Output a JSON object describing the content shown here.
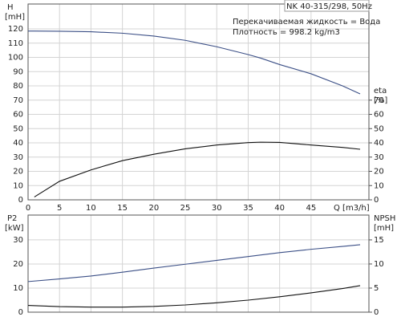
{
  "chart_data": [
    {
      "type": "line",
      "title": "NK 40-315/298, 50Hz",
      "annotations": [
        "Перекачиваемая жидкость = Вода",
        "Плотность = 998.2 kg/m3"
      ],
      "y_label": [
        "H",
        "[mH]"
      ],
      "y2_label": [
        "eta",
        "[%]"
      ],
      "x_label": "Q [m3/h]",
      "x": [
        0,
        1,
        5,
        10,
        15,
        20,
        25,
        30,
        35,
        37,
        40,
        45,
        50,
        52.8
      ],
      "series": [
        {
          "name": "H",
          "color": "#3b4f86",
          "values": [
            118.5,
            118.5,
            118.4,
            118,
            117,
            115,
            112,
            107.5,
            102,
            99.5,
            95,
            88.5,
            80,
            74.4
          ]
        },
        {
          "name": "eta",
          "color": "#111111",
          "axis": "y2",
          "values": [
            null,
            2,
            13,
            21,
            27.5,
            32,
            35.8,
            38.5,
            40.2,
            40.5,
            40.3,
            38.5,
            36.8,
            35.5
          ]
        }
      ],
      "xlim": [
        0,
        54.2
      ],
      "xticks": [
        0,
        5,
        10,
        15,
        20,
        25,
        30,
        35,
        40,
        45
      ],
      "ylim": [
        0,
        137.5
      ],
      "yticks": [
        0,
        10,
        20,
        30,
        40,
        50,
        60,
        70,
        80,
        90,
        100,
        110,
        120
      ],
      "y2lim": [
        0,
        137.5
      ],
      "y2ticks": [
        0,
        10,
        20,
        30,
        40,
        50,
        60,
        70
      ],
      "grid": true
    },
    {
      "type": "line",
      "y_label": [
        "P2",
        "[kW]"
      ],
      "y2_label": [
        "NPSH",
        "[mH]"
      ],
      "x": [
        0,
        5,
        10,
        15,
        20,
        25,
        30,
        35,
        40,
        45,
        50,
        52.8
      ],
      "series": [
        {
          "name": "P2",
          "color": "#3b4f86",
          "values": [
            12.7,
            13.8,
            15,
            16.6,
            18.3,
            19.9,
            21.5,
            23.1,
            24.7,
            26.1,
            27.3,
            28
          ]
        },
        {
          "name": "NPSH",
          "color": "#111111",
          "axis": "y2",
          "values": [
            1.4,
            1.15,
            1.05,
            1.05,
            1.2,
            1.5,
            1.95,
            2.5,
            3.2,
            4,
            4.9,
            5.5
          ]
        }
      ],
      "xlim": [
        0,
        54.2
      ],
      "ylim": [
        0,
        40.3
      ],
      "yticks": [
        0,
        10,
        20,
        30
      ],
      "y2lim": [
        0,
        20.15
      ],
      "y2ticks": [
        0,
        5,
        10,
        15
      ],
      "grid": true
    }
  ]
}
